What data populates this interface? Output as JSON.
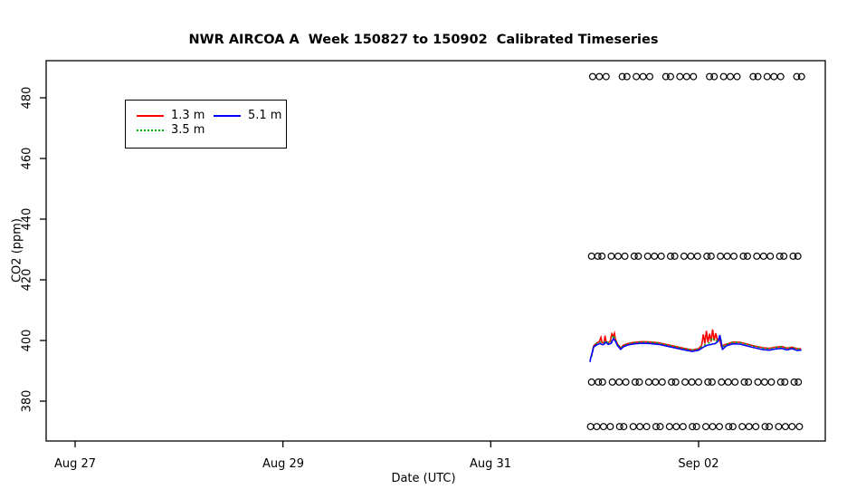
{
  "chart_data": {
    "type": "line",
    "title": "NWR AIRCOA A  Week 150827 to 150902  Calibrated Timeseries",
    "xlabel": "Date (UTC)",
    "ylabel": "CO2 (ppm)",
    "grid": false,
    "frame_color": "#000000",
    "background": "#ffffff",
    "x_axis": {
      "unit": "days since Aug 27 00:00 UTC",
      "domain_days": [
        -0.28,
        7.22
      ],
      "ticks": [
        {
          "label": "Aug 27",
          "day": 0
        },
        {
          "label": "Aug 29",
          "day": 2
        },
        {
          "label": "Aug 31",
          "day": 4
        },
        {
          "label": "Sep 02",
          "day": 6
        }
      ]
    },
    "y_axis": {
      "domain_ppm": [
        366.9,
        492.2
      ],
      "ticks": [
        {
          "label": "380",
          "value": 380
        },
        {
          "label": "400",
          "value": 400
        },
        {
          "label": "420",
          "value": 420
        },
        {
          "label": "440",
          "value": 440
        },
        {
          "label": "460",
          "value": 460
        },
        {
          "label": "480",
          "value": 480
        }
      ]
    },
    "legend": {
      "position": "upper-left",
      "items": [
        {
          "label": "1.3 m",
          "color": "#ff0000",
          "style": "solid"
        },
        {
          "label": "3.5 m",
          "color": "#00b000",
          "style": "dotted"
        },
        {
          "label": "5.1 m",
          "color": "#0000ff",
          "style": "solid"
        }
      ]
    },
    "series": [
      {
        "name": "1.3 m",
        "color": "#ff0000",
        "style": "solid",
        "points": [
          [
            4.97,
            394.8
          ],
          [
            4.99,
            398.2
          ],
          [
            5.02,
            399.2
          ],
          [
            5.045,
            399.6
          ],
          [
            5.06,
            401.0
          ],
          [
            5.07,
            399.4
          ],
          [
            5.09,
            399.2
          ],
          [
            5.1,
            401.6
          ],
          [
            5.11,
            399.6
          ],
          [
            5.13,
            399.2
          ],
          [
            5.15,
            399.8
          ],
          [
            5.165,
            402.2
          ],
          [
            5.18,
            401.4
          ],
          [
            5.19,
            402.4
          ],
          [
            5.2,
            400.4
          ],
          [
            5.22,
            398.8
          ],
          [
            5.25,
            397.6
          ],
          [
            5.28,
            398.5
          ],
          [
            5.32,
            399.0
          ],
          [
            5.38,
            399.4
          ],
          [
            5.46,
            399.6
          ],
          [
            5.54,
            399.5
          ],
          [
            5.62,
            399.2
          ],
          [
            5.7,
            398.6
          ],
          [
            5.78,
            398.0
          ],
          [
            5.86,
            397.4
          ],
          [
            5.94,
            396.9
          ],
          [
            6.0,
            397.3
          ],
          [
            6.03,
            398.4
          ],
          [
            6.045,
            402.0
          ],
          [
            6.06,
            399.0
          ],
          [
            6.075,
            403.2
          ],
          [
            6.09,
            399.4
          ],
          [
            6.105,
            402.2
          ],
          [
            6.12,
            399.6
          ],
          [
            6.135,
            403.6
          ],
          [
            6.15,
            400.0
          ],
          [
            6.165,
            402.4
          ],
          [
            6.18,
            400.2
          ],
          [
            6.2,
            400.8
          ],
          [
            6.22,
            398.0
          ],
          [
            6.25,
            398.6
          ],
          [
            6.28,
            398.9
          ],
          [
            6.33,
            399.5
          ],
          [
            6.4,
            399.4
          ],
          [
            6.48,
            398.7
          ],
          [
            6.55,
            398.1
          ],
          [
            6.62,
            397.6
          ],
          [
            6.68,
            397.4
          ],
          [
            6.74,
            397.8
          ],
          [
            6.8,
            398.0
          ],
          [
            6.85,
            397.5
          ],
          [
            6.9,
            397.8
          ],
          [
            6.95,
            397.3
          ],
          [
            6.985,
            397.3
          ]
        ]
      },
      {
        "name": "3.5 m",
        "color": "#00b000",
        "style": "dotted",
        "points": [
          [
            4.97,
            394.6
          ],
          [
            4.99,
            398.1
          ],
          [
            5.02,
            399.1
          ],
          [
            5.05,
            399.5
          ],
          [
            5.08,
            399.1
          ],
          [
            5.11,
            399.9
          ],
          [
            5.13,
            399.2
          ],
          [
            5.16,
            399.7
          ],
          [
            5.18,
            401.8
          ],
          [
            5.2,
            400.3
          ],
          [
            5.22,
            398.8
          ],
          [
            5.25,
            397.6
          ],
          [
            5.28,
            398.4
          ],
          [
            5.32,
            398.9
          ],
          [
            5.38,
            399.3
          ],
          [
            5.46,
            399.5
          ],
          [
            5.54,
            399.4
          ],
          [
            5.62,
            399.1
          ],
          [
            5.7,
            398.5
          ],
          [
            5.78,
            397.9
          ],
          [
            5.86,
            397.3
          ],
          [
            5.94,
            396.9
          ],
          [
            6.0,
            397.2
          ],
          [
            6.04,
            398.2
          ],
          [
            6.08,
            398.9
          ],
          [
            6.11,
            399.3
          ],
          [
            6.13,
            401.0
          ],
          [
            6.16,
            399.6
          ],
          [
            6.19,
            400.4
          ],
          [
            6.21,
            401.2
          ],
          [
            6.23,
            397.7
          ],
          [
            6.27,
            398.8
          ],
          [
            6.33,
            399.4
          ],
          [
            6.4,
            399.3
          ],
          [
            6.48,
            398.6
          ],
          [
            6.55,
            398.0
          ],
          [
            6.62,
            397.5
          ],
          [
            6.68,
            397.3
          ],
          [
            6.74,
            397.7
          ],
          [
            6.8,
            397.9
          ],
          [
            6.85,
            397.4
          ],
          [
            6.9,
            397.7
          ],
          [
            6.95,
            397.2
          ],
          [
            6.99,
            397.3
          ]
        ]
      },
      {
        "name": "5.1 m",
        "color": "#0000ff",
        "style": "solid",
        "points": [
          [
            4.955,
            392.9
          ],
          [
            4.96,
            394.0
          ],
          [
            4.98,
            396.5
          ],
          [
            4.99,
            397.8
          ],
          [
            5.02,
            398.6
          ],
          [
            5.05,
            399.0
          ],
          [
            5.08,
            398.6
          ],
          [
            5.11,
            399.4
          ],
          [
            5.13,
            398.7
          ],
          [
            5.16,
            399.1
          ],
          [
            5.18,
            400.6
          ],
          [
            5.2,
            399.8
          ],
          [
            5.22,
            398.3
          ],
          [
            5.25,
            397.1
          ],
          [
            5.28,
            398.0
          ],
          [
            5.32,
            398.5
          ],
          [
            5.38,
            398.9
          ],
          [
            5.46,
            399.1
          ],
          [
            5.54,
            399.0
          ],
          [
            5.62,
            398.7
          ],
          [
            5.7,
            398.1
          ],
          [
            5.78,
            397.5
          ],
          [
            5.86,
            396.9
          ],
          [
            5.94,
            396.4
          ],
          [
            6.0,
            396.8
          ],
          [
            6.04,
            397.7
          ],
          [
            6.08,
            398.4
          ],
          [
            6.12,
            398.7
          ],
          [
            6.16,
            399.0
          ],
          [
            6.19,
            399.8
          ],
          [
            6.205,
            401.8
          ],
          [
            6.22,
            398.9
          ],
          [
            6.23,
            397.1
          ],
          [
            6.27,
            398.3
          ],
          [
            6.33,
            398.9
          ],
          [
            6.4,
            398.8
          ],
          [
            6.48,
            398.1
          ],
          [
            6.55,
            397.5
          ],
          [
            6.62,
            397.0
          ],
          [
            6.68,
            396.8
          ],
          [
            6.74,
            397.2
          ],
          [
            6.8,
            397.4
          ],
          [
            6.85,
            396.9
          ],
          [
            6.9,
            397.3
          ],
          [
            6.95,
            396.7
          ],
          [
            6.99,
            396.9
          ]
        ]
      }
    ],
    "calibration_circles": {
      "marker": "open-circle",
      "color": "#000000",
      "rows": [
        {
          "ppm": 487.0,
          "days": [
            4.98,
            5.045,
            5.11,
            5.265,
            5.31,
            5.4,
            5.465,
            5.53,
            5.685,
            5.73,
            5.82,
            5.885,
            5.95,
            6.105,
            6.15,
            6.24,
            6.305,
            6.37,
            6.525,
            6.57,
            6.66,
            6.725,
            6.79,
            6.945,
            6.99
          ]
        },
        {
          "ppm": 427.8,
          "days": [
            4.97,
            5.03,
            5.07,
            5.16,
            5.225,
            5.29,
            5.38,
            5.42,
            5.51,
            5.575,
            5.64,
            5.73,
            5.77,
            5.86,
            5.925,
            5.99,
            6.08,
            6.12,
            6.21,
            6.275,
            6.34,
            6.43,
            6.47,
            6.56,
            6.625,
            6.69,
            6.78,
            6.82,
            6.91,
            6.955
          ]
        },
        {
          "ppm": 386.3,
          "days": [
            4.97,
            5.035,
            5.075,
            5.17,
            5.235,
            5.3,
            5.39,
            5.43,
            5.52,
            5.585,
            5.65,
            5.74,
            5.78,
            5.87,
            5.935,
            6.0,
            6.09,
            6.13,
            6.22,
            6.285,
            6.35,
            6.44,
            6.48,
            6.57,
            6.635,
            6.7,
            6.79,
            6.83,
            6.92,
            6.96
          ]
        },
        {
          "ppm": 371.6,
          "days": [
            4.96,
            5.02,
            5.085,
            5.15,
            5.24,
            5.28,
            5.37,
            5.435,
            5.5,
            5.59,
            5.63,
            5.72,
            5.785,
            5.85,
            5.94,
            5.98,
            6.07,
            6.135,
            6.2,
            6.29,
            6.33,
            6.42,
            6.485,
            6.55,
            6.64,
            6.68,
            6.77,
            6.835,
            6.9,
            6.97
          ]
        }
      ]
    }
  }
}
